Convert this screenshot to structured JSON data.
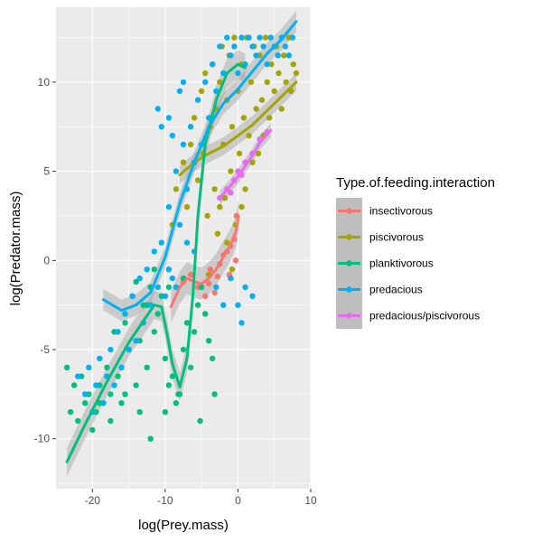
{
  "chart_data": {
    "type": "scatter",
    "xlabel": "log(Prey.mass)",
    "ylabel": "log(Predator.mass)",
    "xlim": [
      -25,
      10
    ],
    "ylim": [
      -12.8,
      14.2
    ],
    "x_ticks": [
      -20,
      -10,
      0,
      10
    ],
    "y_ticks": [
      -10,
      -5,
      0,
      5,
      10
    ],
    "x_tick_labels": [
      "-20",
      "-10",
      "0",
      "10"
    ],
    "y_tick_labels": [
      "-10",
      "-5",
      "0",
      "5",
      "10"
    ],
    "grid": true,
    "legend_position": "right",
    "legend_title": "Type.of.feeding.interaction",
    "colors": {
      "panel_background": "#EBEBEB",
      "grid": "#FFFFFF",
      "ribbon": "#999999",
      "insectivorous": "#F8766D",
      "piscivorous": "#A3A500",
      "planktivorous": "#00BF7D",
      "predacious": "#00B0F6",
      "predacious/piscivorous": "#E76BF3"
    },
    "series": [
      {
        "name": "insectivorous",
        "color": "#F8766D",
        "points": [
          [
            -7.5,
            -1.2
          ],
          [
            -6.5,
            -0.8
          ],
          [
            -5.5,
            -1.5
          ],
          [
            -4.5,
            -2.0
          ],
          [
            -3.8,
            -0.5
          ],
          [
            -3.2,
            -1.8
          ],
          [
            -2.5,
            -0.2
          ],
          [
            -2.0,
            0.3
          ],
          [
            -1.5,
            0.5
          ],
          [
            -1.0,
            0.8
          ],
          [
            -0.5,
            1.2
          ],
          [
            -0.2,
            2.5
          ],
          [
            -0.3,
            0.0
          ],
          [
            -1.2,
            -0.8
          ],
          [
            -2.8,
            -0.9
          ],
          [
            -4.0,
            -1.3
          ]
        ],
        "smooth": [
          [
            -9.2,
            -2.6
          ],
          [
            -8.0,
            -1.5
          ],
          [
            -7.0,
            -1.0
          ],
          [
            -6.0,
            -1.2
          ],
          [
            -5.0,
            -1.3
          ],
          [
            -4.0,
            -1.0
          ],
          [
            -3.0,
            -0.5
          ],
          [
            -2.0,
            0.2
          ],
          [
            -1.0,
            0.9
          ],
          [
            -0.3,
            1.6
          ],
          [
            0.1,
            2.5
          ]
        ],
        "ribbon_halfwidth": 0.9
      },
      {
        "name": "piscivorous",
        "color": "#A3A500",
        "points": [
          [
            -9.0,
            2.0
          ],
          [
            -8.5,
            4.0
          ],
          [
            -7.5,
            5.5
          ],
          [
            -7.0,
            3.0
          ],
          [
            -6.5,
            6.5
          ],
          [
            -6.0,
            8.0
          ],
          [
            -5.5,
            4.5
          ],
          [
            -5.0,
            9.5
          ],
          [
            -4.8,
            6.0
          ],
          [
            -4.5,
            10.5
          ],
          [
            -4.2,
            2.5
          ],
          [
            -4.0,
            -0.8
          ],
          [
            -3.8,
            7.5
          ],
          [
            -3.5,
            11.0
          ],
          [
            -3.2,
            4.0
          ],
          [
            -3.0,
            8.5
          ],
          [
            -2.8,
            1.5
          ],
          [
            -2.5,
            10.0
          ],
          [
            -2.2,
            12.0
          ],
          [
            -2.0,
            6.5
          ],
          [
            -1.8,
            3.5
          ],
          [
            -1.5,
            9.0
          ],
          [
            -1.2,
            11.5
          ],
          [
            -1.0,
            5.0
          ],
          [
            -0.8,
            7.5
          ],
          [
            -0.5,
            12.5
          ],
          [
            -0.3,
            2.0
          ],
          [
            0.0,
            9.5
          ],
          [
            0.2,
            6.0
          ],
          [
            0.5,
            11.0
          ],
          [
            0.8,
            8.0
          ],
          [
            1.0,
            4.0
          ],
          [
            1.2,
            12.5
          ],
          [
            1.5,
            7.0
          ],
          [
            1.8,
            10.0
          ],
          [
            2.0,
            5.5
          ],
          [
            2.2,
            12.0
          ],
          [
            2.5,
            8.5
          ],
          [
            2.8,
            6.0
          ],
          [
            3.0,
            11.5
          ],
          [
            3.3,
            9.0
          ],
          [
            3.5,
            7.0
          ],
          [
            3.8,
            12.5
          ],
          [
            4.0,
            10.0
          ],
          [
            4.3,
            8.0
          ],
          [
            4.6,
            11.0
          ],
          [
            5.0,
            9.5
          ],
          [
            5.3,
            12.0
          ],
          [
            5.6,
            10.5
          ],
          [
            6.0,
            8.5
          ],
          [
            6.3,
            11.5
          ],
          [
            6.6,
            10.0
          ],
          [
            7.0,
            12.5
          ],
          [
            7.3,
            9.5
          ],
          [
            7.6,
            11.0
          ],
          [
            8.0,
            10.5
          ],
          [
            -2.5,
            3.0
          ],
          [
            -1.5,
            1.0
          ],
          [
            -0.8,
            -0.5
          ],
          [
            0.5,
            3.0
          ]
        ],
        "smooth": [
          [
            -8.0,
            4.8
          ],
          [
            -6.0,
            5.5
          ],
          [
            -4.0,
            6.0
          ],
          [
            -2.0,
            6.4
          ],
          [
            0.0,
            7.0
          ],
          [
            2.0,
            7.6
          ],
          [
            4.0,
            8.4
          ],
          [
            6.0,
            9.2
          ],
          [
            8.0,
            10.0
          ]
        ],
        "ribbon_halfwidth": 0.5
      },
      {
        "name": "planktivorous",
        "color": "#00BF7D",
        "points": [
          [
            -23.5,
            -6.0
          ],
          [
            -23.0,
            -8.5
          ],
          [
            -22.5,
            -7.0
          ],
          [
            -22.0,
            -9.0
          ],
          [
            -21.5,
            -6.5
          ],
          [
            -21.0,
            -8.0
          ],
          [
            -20.5,
            -7.5
          ],
          [
            -20.0,
            -9.5
          ],
          [
            -19.5,
            -8.5
          ],
          [
            -19.0,
            -7.0
          ],
          [
            -18.5,
            -8.0
          ],
          [
            -18.0,
            -6.0
          ],
          [
            -17.5,
            -7.5
          ],
          [
            -17.0,
            -4.0
          ],
          [
            -16.5,
            -6.5
          ],
          [
            -16.0,
            -8.0
          ],
          [
            -15.5,
            -3.5
          ],
          [
            -15.0,
            -5.0
          ],
          [
            -14.5,
            -2.0
          ],
          [
            -14.0,
            -7.0
          ],
          [
            -13.5,
            -4.5
          ],
          [
            -13.0,
            -2.5
          ],
          [
            -12.5,
            -6.0
          ],
          [
            -12.0,
            -1.5
          ],
          [
            -11.5,
            -4.0
          ],
          [
            -11.0,
            -3.0
          ],
          [
            -10.5,
            -2.0
          ],
          [
            -10.0,
            -5.5
          ],
          [
            -9.5,
            -7.0
          ],
          [
            -9.0,
            -6.5
          ],
          [
            -8.5,
            -8.0
          ],
          [
            -8.0,
            -7.5
          ],
          [
            -7.5,
            -5.0
          ],
          [
            -7.0,
            -3.5
          ],
          [
            -6.5,
            -6.0
          ],
          [
            -6.0,
            -4.0
          ],
          [
            -5.5,
            -2.5
          ],
          [
            -5.0,
            -1.5
          ],
          [
            -4.5,
            -3.0
          ],
          [
            -4.0,
            -4.5
          ],
          [
            -3.5,
            -5.5
          ],
          [
            -3.2,
            -7.5
          ],
          [
            -5.2,
            -9.0
          ],
          [
            -8.2,
            -7.5
          ],
          [
            -10.0,
            -8.5
          ],
          [
            -12.0,
            -10.0
          ],
          [
            -13.5,
            -8.5
          ],
          [
            -15.5,
            -7.5
          ],
          [
            -17.5,
            -9.0
          ],
          [
            -19.0,
            -8.0
          ],
          [
            -12.5,
            -2.5
          ],
          [
            -14.0,
            -1.2
          ],
          [
            -11.5,
            -0.5
          ],
          [
            -9.5,
            -1.5
          ],
          [
            -7.5,
            -1.0
          ]
        ],
        "smooth": [
          [
            -23.5,
            -11.3
          ],
          [
            -21.0,
            -9.2
          ],
          [
            -18.0,
            -6.8
          ],
          [
            -15.0,
            -4.6
          ],
          [
            -13.0,
            -3.4
          ],
          [
            -11.5,
            -2.5
          ],
          [
            -10.5,
            -2.6
          ],
          [
            -9.8,
            -4.0
          ],
          [
            -9.0,
            -5.8
          ],
          [
            -8.0,
            -7.1
          ],
          [
            -7.0,
            -5.5
          ],
          [
            -6.2,
            -2.0
          ],
          [
            -5.5,
            2.5
          ],
          [
            -4.5,
            6.5
          ],
          [
            -3.0,
            9.0
          ],
          [
            -1.5,
            10.5
          ],
          [
            0.0,
            11.0
          ],
          [
            1.0,
            10.8
          ]
        ],
        "ribbon_halfwidth": 0.8
      },
      {
        "name": "predacious",
        "color": "#00B0F6",
        "points": [
          [
            -22.0,
            -6.5
          ],
          [
            -21.0,
            -7.5
          ],
          [
            -20.5,
            -6.0
          ],
          [
            -20.0,
            -8.5
          ],
          [
            -19.5,
            -7.0
          ],
          [
            -19.0,
            -5.5
          ],
          [
            -18.5,
            -8.0
          ],
          [
            -18.0,
            -6.5
          ],
          [
            -17.5,
            -5.0
          ],
          [
            -17.0,
            -7.0
          ],
          [
            -16.5,
            -4.0
          ],
          [
            -16.0,
            -6.0
          ],
          [
            -15.5,
            -3.0
          ],
          [
            -15.0,
            -5.0
          ],
          [
            -14.5,
            -2.0
          ],
          [
            -14.0,
            -4.5
          ],
          [
            -13.5,
            -1.0
          ],
          [
            -13.0,
            -3.5
          ],
          [
            -12.5,
            -0.5
          ],
          [
            -12.0,
            -2.5
          ],
          [
            -11.5,
            0.5
          ],
          [
            -11.0,
            -1.5
          ],
          [
            -10.5,
            1.0
          ],
          [
            -10.0,
            -2.0
          ],
          [
            -9.5,
            3.0
          ],
          [
            -9.0,
            -1.0
          ],
          [
            -8.5,
            5.0
          ],
          [
            -8.0,
            2.0
          ],
          [
            -7.5,
            6.5
          ],
          [
            -7.0,
            4.0
          ],
          [
            -6.5,
            7.5
          ],
          [
            -6.0,
            5.5
          ],
          [
            -5.5,
            9.0
          ],
          [
            -5.0,
            6.5
          ],
          [
            -4.5,
            10.0
          ],
          [
            -4.0,
            8.0
          ],
          [
            -3.5,
            11.0
          ],
          [
            -3.0,
            9.5
          ],
          [
            -2.5,
            12.0
          ],
          [
            -2.0,
            10.5
          ],
          [
            -1.5,
            12.5
          ],
          [
            -1.0,
            11.5
          ],
          [
            -0.5,
            12.0
          ],
          [
            0.0,
            10.5
          ],
          [
            0.5,
            12.5
          ],
          [
            1.0,
            11.0
          ],
          [
            1.5,
            12.5
          ],
          [
            2.0,
            12.0
          ],
          [
            2.5,
            11.5
          ],
          [
            3.0,
            12.5
          ],
          [
            3.5,
            12.0
          ],
          [
            4.0,
            11.0
          ],
          [
            4.5,
            12.5
          ],
          [
            5.0,
            12.0
          ],
          [
            5.5,
            11.5
          ],
          [
            6.0,
            12.5
          ],
          [
            6.5,
            12.0
          ],
          [
            7.0,
            11.5
          ],
          [
            7.5,
            12.5
          ],
          [
            -11.0,
            8.5
          ],
          [
            -10.5,
            7.5
          ],
          [
            -9.5,
            8.0
          ],
          [
            -9.0,
            7.0
          ],
          [
            -8.0,
            9.5
          ],
          [
            -7.5,
            10.0
          ],
          [
            -3.0,
            -1.5
          ],
          [
            -2.0,
            -2.5
          ],
          [
            -1.0,
            -1.0
          ],
          [
            0.0,
            -2.5
          ],
          [
            1.0,
            -1.5
          ],
          [
            2.0,
            -2.0
          ],
          [
            0.5,
            -3.5
          ],
          [
            -8.5,
            -1.5
          ],
          [
            -9.5,
            -0.5
          ],
          [
            -7.0,
            1.0
          ],
          [
            -6.0,
            0.5
          ]
        ],
        "smooth": [
          [
            -18.5,
            -2.2
          ],
          [
            -16.0,
            -2.8
          ],
          [
            -14.0,
            -2.5
          ],
          [
            -12.0,
            -1.8
          ],
          [
            -10.0,
            0.2
          ],
          [
            -8.0,
            3.2
          ],
          [
            -6.0,
            5.5
          ],
          [
            -4.0,
            7.5
          ],
          [
            -2.0,
            8.8
          ],
          [
            0.0,
            9.6
          ],
          [
            2.0,
            10.6
          ],
          [
            4.0,
            11.6
          ],
          [
            6.0,
            12.4
          ],
          [
            8.0,
            13.4
          ]
        ],
        "ribbon_halfwidth": 0.6
      },
      {
        "name": "predacious/piscivorous",
        "color": "#E76BF3",
        "points": [
          [
            -2.5,
            3.5
          ],
          [
            -1.5,
            4.0
          ],
          [
            -0.5,
            4.5
          ],
          [
            0.0,
            5.0
          ],
          [
            1.0,
            5.5
          ],
          [
            2.0,
            6.0
          ],
          [
            3.0,
            6.8
          ],
          [
            4.0,
            7.2
          ],
          [
            -1.0,
            3.8
          ],
          [
            0.5,
            4.8
          ]
        ],
        "smooth": [
          [
            -2.5,
            3.5
          ],
          [
            -1.0,
            4.2
          ],
          [
            0.0,
            4.7
          ],
          [
            1.0,
            5.3
          ],
          [
            2.0,
            5.9
          ],
          [
            3.0,
            6.6
          ],
          [
            4.5,
            7.3
          ]
        ],
        "ribbon_halfwidth": 0.4
      }
    ]
  }
}
